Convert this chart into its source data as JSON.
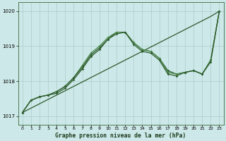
{
  "xlabel": "Graphe pression niveau de la mer (hPa)",
  "background_color": "#cde8e8",
  "grid_color": "#aacccc",
  "line_color_dark": "#2d5a2d",
  "line_color_light": "#4a8a4a",
  "ylim": [
    1016.75,
    1020.25
  ],
  "xlim": [
    -0.5,
    23.5
  ],
  "yticks": [
    1017,
    1018,
    1019,
    1020
  ],
  "xticks": [
    0,
    1,
    2,
    3,
    4,
    5,
    6,
    7,
    8,
    9,
    10,
    11,
    12,
    13,
    14,
    15,
    16,
    17,
    18,
    19,
    20,
    21,
    22,
    23
  ],
  "line_straight": [
    1017.1,
    1017.225,
    1017.35,
    1017.475,
    1017.6,
    1017.725,
    1017.85,
    1017.975,
    1018.1,
    1018.225,
    1018.35,
    1018.475,
    1018.6,
    1018.725,
    1018.85,
    1018.975,
    1019.1,
    1019.225,
    1019.35,
    1019.475,
    1019.6,
    1019.725,
    1019.85,
    1020.0
  ],
  "line_curve1": [
    1017.1,
    1017.45,
    1017.55,
    1017.6,
    1017.65,
    1017.8,
    1018.05,
    1018.35,
    1018.7,
    1018.9,
    1019.2,
    1019.4,
    1019.4,
    1019.1,
    1018.9,
    1018.85,
    1018.65,
    1018.3,
    1018.2,
    1018.25,
    1018.3,
    1018.2,
    1018.6,
    1020.0
  ],
  "line_curve2": [
    1017.1,
    1017.45,
    1017.55,
    1017.6,
    1017.7,
    1017.85,
    1018.1,
    1018.45,
    1018.8,
    1019.0,
    1019.25,
    1019.4,
    1019.4,
    1019.1,
    1018.9,
    1018.85,
    1018.65,
    1018.25,
    1018.2,
    1018.25,
    1018.3,
    1018.2,
    1018.6,
    1020.0
  ],
  "line_curve3": [
    1017.1,
    1017.45,
    1017.55,
    1017.6,
    1017.7,
    1017.85,
    1018.1,
    1018.4,
    1018.75,
    1018.95,
    1019.2,
    1019.35,
    1019.4,
    1019.05,
    1018.85,
    1018.8,
    1018.6,
    1018.2,
    1018.15,
    1018.25,
    1018.3,
    1018.2,
    1018.55,
    1020.0
  ]
}
